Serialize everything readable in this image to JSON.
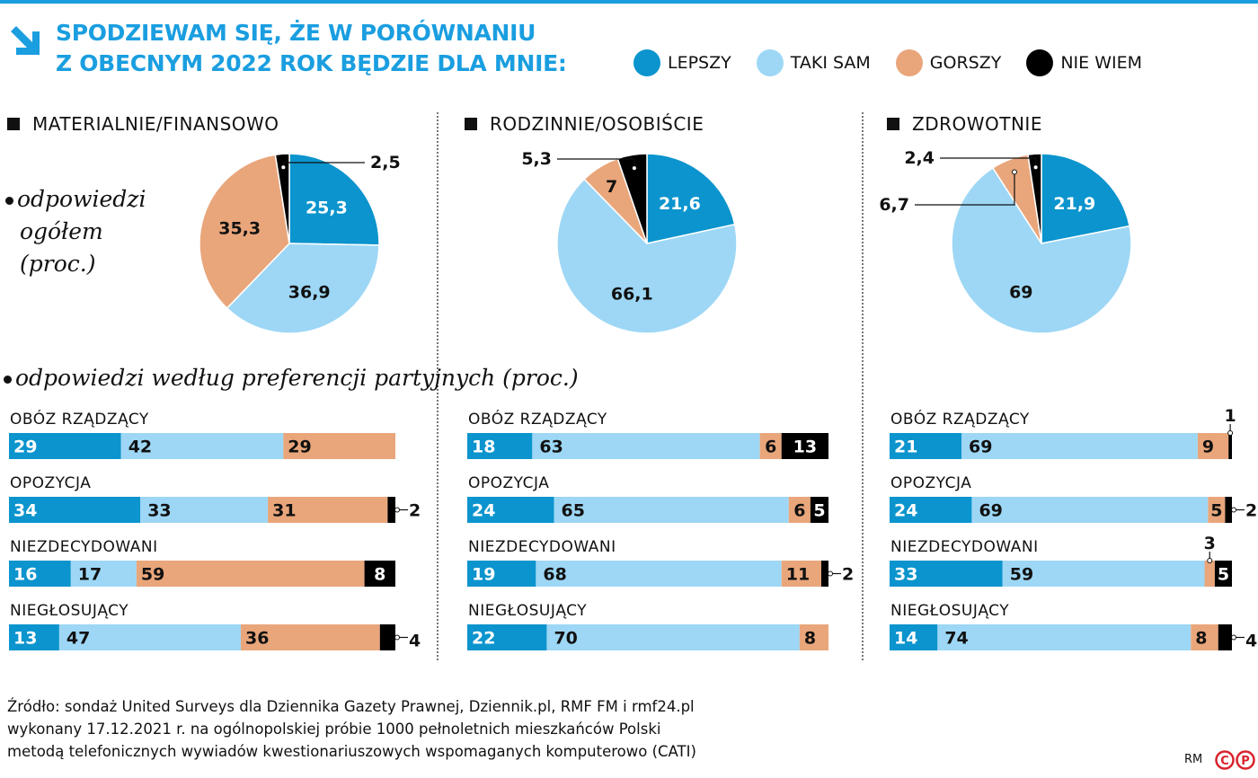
{
  "header": {
    "title_line1": "SPODZIEWAM SIĘ, ŻE W PORÓWNANIU",
    "title_line2": "Z OBECNYM 2022 ROK BĘDZIE DLA MNIE:",
    "icon": "arrow-down-right-icon"
  },
  "colors": {
    "lepszy": "#0b94cd",
    "taki_sam": "#9dd7f5",
    "gorszy": "#e9a67b",
    "nie_wiem": "#000000",
    "accent": "#1a9ee0"
  },
  "legend": [
    "LEPSZY",
    "TAKI SAM",
    "GORSZY",
    "NIE WIEM"
  ],
  "notes": {
    "overall": [
      "odpowiedzi",
      "ogółem",
      "(proc.)"
    ],
    "party": "odpowiedzi według preferencji partyjnych (proc.)"
  },
  "chart_data": [
    {
      "type": "pie",
      "title": "MATERIALNIE/FINANSOWO",
      "labels": [
        "LEPSZY",
        "TAKI SAM",
        "GORSZY",
        "NIE WIEM"
      ],
      "values": [
        25.3,
        36.9,
        35.3,
        2.5
      ]
    },
    {
      "type": "pie",
      "title": "RODZINNIE/OSOBIŚCIE",
      "labels": [
        "LEPSZY",
        "TAKI SAM",
        "GORSZY",
        "NIE WIEM"
      ],
      "values": [
        21.6,
        66.1,
        7,
        5.3
      ]
    },
    {
      "type": "pie",
      "title": "ZDROWOTNIE",
      "labels": [
        "LEPSZY",
        "TAKI SAM",
        "GORSZY",
        "NIE WIEM"
      ],
      "values": [
        21.9,
        69,
        6.7,
        2.4
      ]
    },
    {
      "type": "bar",
      "stacked": true,
      "orientation": "horizontal",
      "title": "MATERIALNIE/FINANSOWO",
      "categories": [
        "OBÓZ RZĄDZĄCY",
        "OPOZYCJA",
        "NIEZDECYDOWANI",
        "NIEGŁOSUJĄCY"
      ],
      "series": [
        {
          "name": "LEPSZY",
          "values": [
            29,
            34,
            16,
            13
          ]
        },
        {
          "name": "TAKI SAM",
          "values": [
            42,
            33,
            17,
            47
          ]
        },
        {
          "name": "GORSZY",
          "values": [
            29,
            31,
            59,
            36
          ]
        },
        {
          "name": "NIE WIEM",
          "values": [
            0,
            2,
            8,
            4
          ]
        }
      ]
    },
    {
      "type": "bar",
      "stacked": true,
      "orientation": "horizontal",
      "title": "RODZINNIE/OSOBIŚCIE",
      "categories": [
        "OBÓZ RZĄDZĄCY",
        "OPOZYCJA",
        "NIEZDECYDOWANI",
        "NIEGŁOSUJĄCY"
      ],
      "series": [
        {
          "name": "LEPSZY",
          "values": [
            18,
            24,
            19,
            22
          ]
        },
        {
          "name": "TAKI SAM",
          "values": [
            63,
            65,
            68,
            70
          ]
        },
        {
          "name": "GORSZY",
          "values": [
            6,
            6,
            11,
            8
          ]
        },
        {
          "name": "NIE WIEM",
          "values": [
            13,
            5,
            2,
            0
          ]
        }
      ]
    },
    {
      "type": "bar",
      "stacked": true,
      "orientation": "horizontal",
      "title": "ZDROWOTNIE",
      "categories": [
        "OBÓZ RZĄDZĄCY",
        "OPOZYCJA",
        "NIEZDECYDOWANI",
        "NIEGŁOSUJĄCY"
      ],
      "series": [
        {
          "name": "LEPSZY",
          "values": [
            21,
            24,
            33,
            14
          ]
        },
        {
          "name": "TAKI SAM",
          "values": [
            69,
            69,
            59,
            74
          ]
        },
        {
          "name": "GORSZY",
          "values": [
            9,
            5,
            3,
            8
          ]
        },
        {
          "name": "NIE WIEM",
          "values": [
            1,
            2,
            5,
            4
          ]
        }
      ]
    }
  ],
  "footer": {
    "line1": "Źródło: sondaż United Surveys dla Dziennika Gazety Prawnej, Dziennik.pl, RMF FM i rmf24.pl",
    "line2": "wykonany 17.12.2021 r. na ogólnopolskiej próbie 1000 pełnoletnich mieszkańców Polski",
    "line3": "metodą telefonicznych wywiadów kwestionariuszowych wspomaganych komputerowo (CATI)",
    "author": "RM",
    "logo": "CP"
  }
}
